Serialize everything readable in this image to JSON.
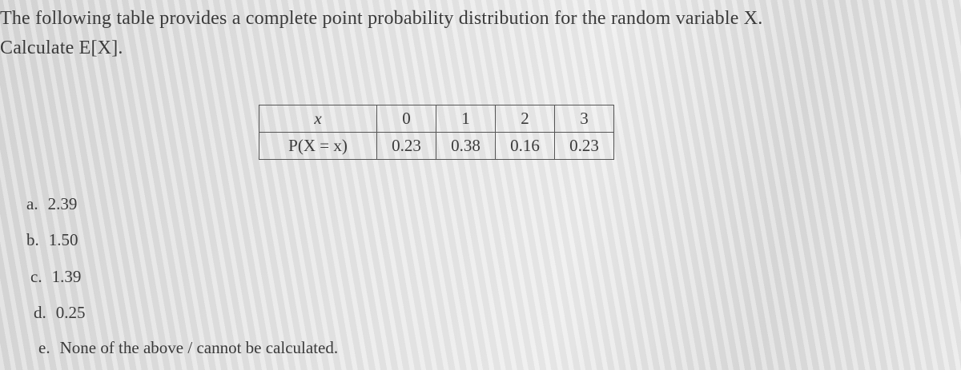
{
  "question": {
    "lines": [
      "The following table provides a complete point probability distribution for the random variable X.",
      "Calculate E[X]."
    ]
  },
  "table": {
    "rows": [
      [
        "x",
        "0",
        "1",
        "2",
        "3"
      ],
      [
        "P(X = x)",
        "0.23",
        "0.38",
        "0.16",
        "0.23"
      ]
    ]
  },
  "options": [
    {
      "label": "a.",
      "text": "2.39"
    },
    {
      "label": "b.",
      "text": "1.50"
    },
    {
      "label": "c.",
      "text": "1.39"
    },
    {
      "label": "d.",
      "text": "0.25"
    },
    {
      "label": "e.",
      "text": "None of the above / cannot be calculated."
    }
  ]
}
